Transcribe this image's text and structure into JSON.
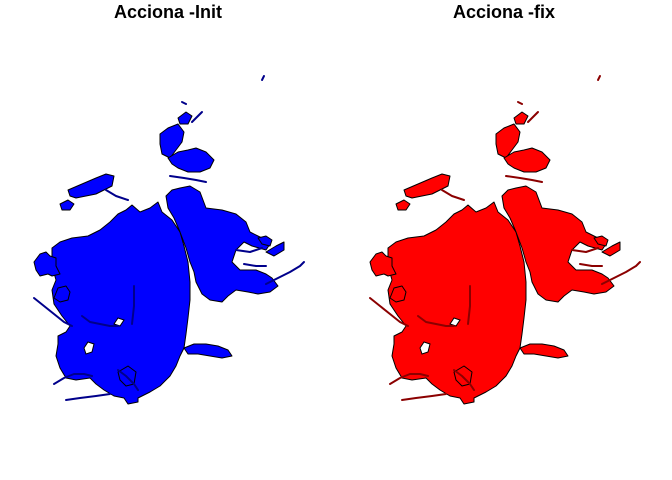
{
  "panels": [
    {
      "title": "Acciona -Init",
      "fill_color": "#0000ff",
      "line_color": "#00008b"
    },
    {
      "title": "Acciona -fix",
      "fill_color": "#ff0000",
      "line_color": "#8b0000"
    }
  ]
}
